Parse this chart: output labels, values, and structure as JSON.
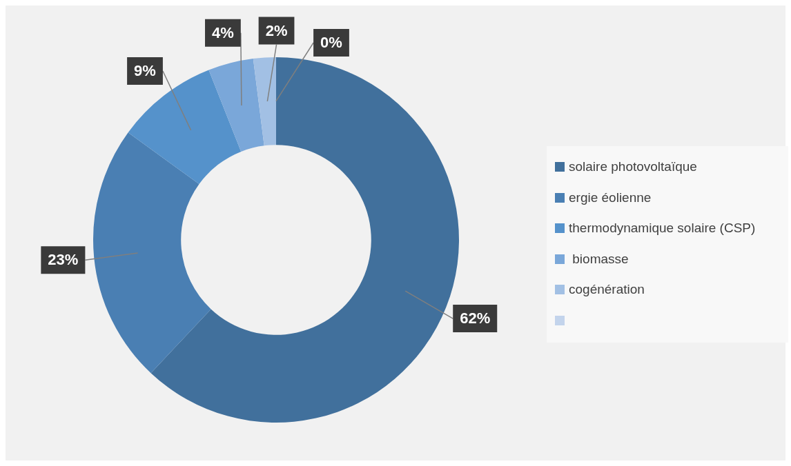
{
  "chart_data": {
    "type": "donut",
    "categories": [
      "solaire photovoltaïque",
      "ergie éolienne",
      "thermodynamique solaire (CSP)",
      " biomasse",
      "cogénération",
      null
    ],
    "values": [
      62,
      23,
      9,
      4,
      2,
      0
    ],
    "colors": [
      "#41709c",
      "#4a7fb3",
      "#5592cb",
      "#7aa7d9",
      "#a2c0e4",
      "#c3d4ec"
    ],
    "value_labels": [
      "62%",
      "23%",
      "9%",
      "4%",
      "2%",
      "0%"
    ],
    "legend": "right"
  }
}
